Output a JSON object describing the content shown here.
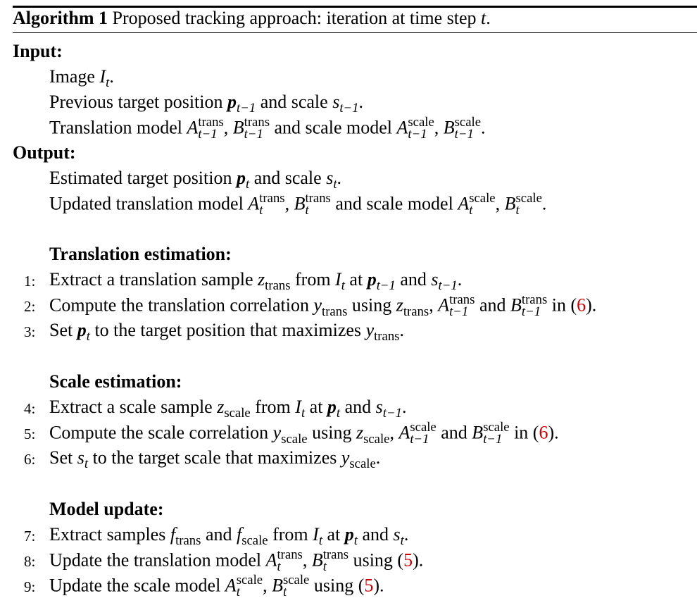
{
  "title": {
    "label": "Algorithm 1",
    "text": "Proposed tracking approach: iteration at time step",
    "var": "t",
    "end": "."
  },
  "input": {
    "header": "Input:",
    "line1": {
      "a": "Image",
      "v": "I",
      "sub": "t",
      "end": "."
    },
    "line2": {
      "a": "Previous target position",
      "p": "p",
      "psub": "t−1",
      "b": "and scale",
      "s": "s",
      "ssub": "t−1",
      "end": "."
    },
    "line3": {
      "a": "Translation model",
      "A": "A",
      "Asup": "trans",
      "Asub": "t−1",
      "sep": ",",
      "B": "B",
      "Bsup": "trans",
      "Bsub": "t−1",
      "b": "and scale model",
      "A2": "A",
      "A2sup": "scale",
      "A2sub": "t−1",
      "sep2": ",",
      "B2": "B",
      "B2sup": "scale",
      "B2sub": "t−1",
      "end": "."
    }
  },
  "output": {
    "header": "Output:",
    "line1": {
      "a": "Estimated target position",
      "p": "p",
      "psub": "t",
      "b": "and scale",
      "s": "s",
      "ssub": "t",
      "end": "."
    },
    "line2": {
      "a": "Updated translation model",
      "A": "A",
      "Asup": "trans",
      "Asub": "t",
      "sep": ",",
      "B": "B",
      "Bsup": "trans",
      "Bsub": "t",
      "b": "and scale model",
      "A2": "A",
      "A2sup": "scale",
      "A2sub": "t",
      "sep2": ",",
      "B2": "B",
      "B2sup": "scale",
      "B2sub": "t",
      "end": "."
    }
  },
  "sections": {
    "translation": "Translation estimation:",
    "scale": "Scale estimation:",
    "update": "Model update:"
  },
  "steps": {
    "s1": {
      "n": "1:",
      "a": "Extract a translation sample",
      "z": "z",
      "zsub": "trans",
      "b": "from",
      "I": "I",
      "Isub": "t",
      "c": "at",
      "p": "p",
      "psub": "t−1",
      "d": "and",
      "s": "s",
      "ssub": "t−1",
      "end": "."
    },
    "s2": {
      "n": "2:",
      "a": "Compute the translation correlation",
      "y": "y",
      "ysub": "trans",
      "b": "using",
      "z": "z",
      "zsub": "trans",
      "sep": ",",
      "A": "A",
      "Asup": "trans",
      "Asub": "t−1",
      "c": "and",
      "B": "B",
      "Bsup": "trans",
      "Bsub": "t−1",
      "d": "in (",
      "ref": "6",
      "end": ")."
    },
    "s3": {
      "n": "3:",
      "a": "Set",
      "p": "p",
      "psub": "t",
      "b": "to the target position that maximizes",
      "y": "y",
      "ysub": "trans",
      "end": "."
    },
    "s4": {
      "n": "4:",
      "a": "Extract a scale sample",
      "z": "z",
      "zsub": "scale",
      "b": "from",
      "I": "I",
      "Isub": "t",
      "c": "at",
      "p": "p",
      "psub": "t",
      "d": "and",
      "s": "s",
      "ssub": "t−1",
      "end": "."
    },
    "s5": {
      "n": "5:",
      "a": "Compute the scale correlation",
      "y": "y",
      "ysub": "scale",
      "b": "using",
      "z": "z",
      "zsub": "scale",
      "sep": ",",
      "A": "A",
      "Asup": "scale",
      "Asub": "t−1",
      "c": "and",
      "B": "B",
      "Bsup": "scale",
      "Bsub": "t−1",
      "d": "in (",
      "ref": "6",
      "end": ")."
    },
    "s6": {
      "n": "6:",
      "a": "Set",
      "s": "s",
      "ssub": "t",
      "b": "to the target scale that maximizes",
      "y": "y",
      "ysub": "scale",
      "end": "."
    },
    "s7": {
      "n": "7:",
      "a": "Extract samples",
      "f1": "f",
      "f1sub": "trans",
      "b": "and",
      "f2": "f",
      "f2sub": "scale",
      "c": "from",
      "I": "I",
      "Isub": "t",
      "d": "at",
      "p": "p",
      "psub": "t",
      "e": "and",
      "s": "s",
      "ssub": "t",
      "end": "."
    },
    "s8": {
      "n": "8:",
      "a": "Update the translation model",
      "A": "A",
      "Asup": "trans",
      "Asub": "t",
      "sep": ",",
      "B": "B",
      "Bsup": "trans",
      "Bsub": "t",
      "b": "using (",
      "ref": "5",
      "end": ")."
    },
    "s9": {
      "n": "9:",
      "a": "Update the scale model",
      "A": "A",
      "Asup": "scale",
      "Asub": "t",
      "sep": ",",
      "B": "B",
      "Bsup": "scale",
      "Bsub": "t",
      "b": "using (",
      "ref": "5",
      "end": ")."
    }
  },
  "colors": {
    "reference": "#cc0000",
    "text": "#000000"
  }
}
